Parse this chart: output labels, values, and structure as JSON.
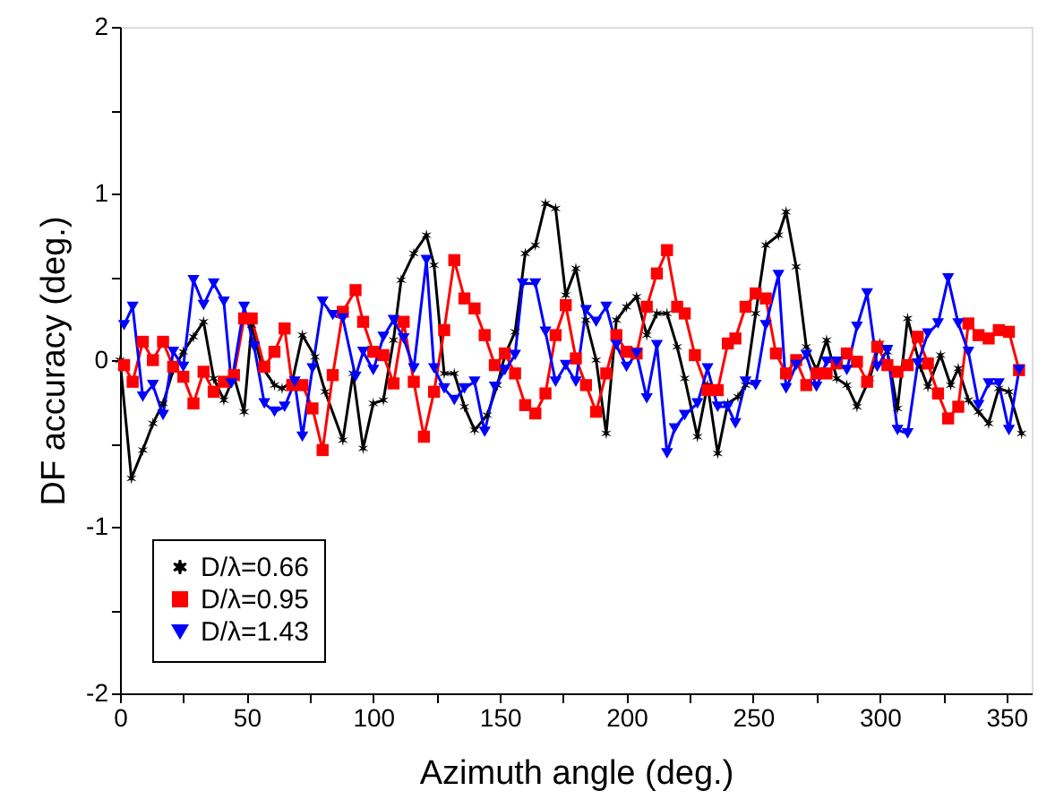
{
  "chart_data": {
    "type": "line",
    "xlabel": "Azimuth angle (deg.)",
    "ylabel": "DF accuracy (deg.)",
    "xlim": [
      0,
      360
    ],
    "xticks": [
      0,
      {
        "value": 25,
        "label": null
      },
      50,
      {
        "value": 75,
        "label": null
      },
      100,
      {
        "value": 125,
        "label": null
      },
      150,
      {
        "value": 175,
        "label": null
      },
      200,
      {
        "value": 225,
        "label": null
      },
      250,
      {
        "value": 275,
        "label": null
      },
      300,
      {
        "value": 325,
        "label": null
      },
      350
    ],
    "ylim": [
      -2,
      2
    ],
    "yticks": [
      -2,
      {
        "value": -1.5,
        "label": null
      },
      -1,
      {
        "value": -0.5,
        "label": null
      },
      0,
      {
        "value": 0.5,
        "label": null
      },
      1,
      {
        "value": 1.5,
        "label": null
      },
      2
    ],
    "grid": false,
    "legend": "bottom left",
    "series": [
      {
        "name": "D/λ=0.66",
        "color": "#000000",
        "marker": "cross",
        "x": [
          0,
          4.5,
          9,
          13,
          17,
          21,
          25,
          29,
          33,
          37,
          41,
          45,
          49,
          52,
          56,
          61,
          64,
          68,
          72,
          77,
          81,
          88,
          92,
          96,
          100,
          104,
          108,
          111,
          116,
          121,
          124,
          128,
          132,
          136,
          140,
          145,
          149,
          152,
          156,
          160,
          164,
          168,
          172,
          176,
          180,
          184,
          188,
          192,
          196,
          200,
          204,
          208,
          212,
          216,
          220,
          223,
          228,
          232,
          236,
          240,
          244,
          247,
          251,
          255,
          260,
          263,
          267,
          271,
          275,
          279,
          283,
          287,
          291,
          296,
          300,
          303,
          307,
          311,
          316,
          319,
          324,
          328,
          331,
          335,
          339,
          343,
          347,
          351,
          356
        ],
        "values": [
          0,
          -0.71,
          -0.54,
          -0.38,
          -0.26,
          -0.06,
          0.05,
          0.14,
          0.23,
          -0.11,
          -0.24,
          -0.1,
          -0.31,
          0.21,
          -0.04,
          -0.15,
          -0.17,
          -0.13,
          0.15,
          0.02,
          -0.19,
          -0.48,
          -0.08,
          -0.53,
          -0.26,
          -0.24,
          0.12,
          0.48,
          0.64,
          0.75,
          0.57,
          -0.08,
          -0.08,
          -0.28,
          -0.42,
          -0.33,
          -0.15,
          0.03,
          0.17,
          0.64,
          0.69,
          0.94,
          0.91,
          0.39,
          0.55,
          0.24,
          0,
          -0.44,
          0.24,
          0.32,
          0.38,
          0.15,
          0.28,
          0.28,
          0.08,
          -0.11,
          -0.46,
          -0.15,
          -0.56,
          -0.26,
          -0.22,
          -0.15,
          0.28,
          0.69,
          0.75,
          0.89,
          0.56,
          0.08,
          -0.06,
          0.12,
          -0.11,
          -0.15,
          -0.28,
          -0.11,
          0.1,
          0.05,
          -0.29,
          0.25,
          -0.04,
          -0.16,
          0.03,
          -0.15,
          -0.05,
          -0.24,
          -0.31,
          -0.38,
          -0.17,
          -0.19,
          -0.44
        ]
      },
      {
        "name": "D/λ=0.95",
        "color": "#ff0000",
        "marker": "square",
        "x": [
          1.6,
          5,
          9,
          13,
          17,
          21,
          25,
          29,
          33,
          37,
          41,
          45,
          49,
          52,
          57,
          61,
          65,
          68,
          72,
          76,
          80,
          84,
          88,
          93,
          96,
          100,
          104,
          108,
          112,
          116,
          120,
          124,
          128,
          132,
          136,
          140,
          144,
          148,
          152,
          156,
          160,
          164,
          168,
          172,
          176,
          180,
          184,
          188,
          192,
          196,
          200,
          204,
          208,
          212,
          216,
          220,
          223,
          227,
          232,
          236,
          240,
          243,
          247,
          251,
          255,
          259,
          263,
          267,
          271,
          275,
          279,
          283,
          287,
          291,
          295,
          299,
          303,
          307,
          311,
          315,
          319,
          323,
          327,
          331,
          335,
          339,
          343,
          347,
          351,
          355
        ],
        "values": [
          -0.03,
          -0.13,
          0.11,
          0,
          0.11,
          -0.04,
          -0.1,
          -0.26,
          -0.07,
          -0.19,
          -0.13,
          -0.09,
          0.25,
          0.25,
          -0.04,
          0.05,
          0.19,
          -0.15,
          -0.15,
          -0.29,
          -0.54,
          -0.09,
          0.29,
          0.42,
          0.23,
          0.05,
          0.03,
          -0.14,
          0.23,
          -0.13,
          -0.46,
          -0.19,
          0.18,
          0.6,
          0.37,
          0.31,
          0.15,
          -0.03,
          0.04,
          -0.08,
          -0.27,
          -0.32,
          -0.2,
          0.15,
          0.33,
          0.01,
          -0.15,
          -0.31,
          -0.08,
          0.15,
          0.05,
          0.04,
          0.32,
          0.52,
          0.66,
          0.32,
          0.28,
          0.03,
          -0.18,
          -0.18,
          0.1,
          0.13,
          0.32,
          0.4,
          0.37,
          0.04,
          -0.08,
          0,
          -0.15,
          -0.08,
          -0.08,
          -0.02,
          0.04,
          -0.01,
          -0.13,
          0.08,
          -0.03,
          -0.07,
          -0.03,
          0.14,
          -0.02,
          -0.2,
          -0.35,
          -0.28,
          0.22,
          0.15,
          0.13,
          0.18,
          0.17,
          -0.06
        ]
      },
      {
        "name": "D/λ=1.43",
        "color": "#0000ff",
        "marker": "triangle",
        "x": [
          1.6,
          5,
          9,
          13,
          17,
          21,
          25,
          29,
          33,
          37,
          41,
          44,
          49,
          53,
          57,
          61,
          65,
          69,
          72,
          76,
          80,
          84,
          88,
          93,
          96,
          100,
          104,
          108,
          112,
          116,
          121,
          124,
          128,
          132,
          136,
          140,
          144,
          148,
          152,
          156,
          159,
          164,
          168,
          172,
          176,
          180,
          184,
          188,
          192,
          196,
          200,
          204,
          208,
          212,
          216,
          219,
          223,
          228,
          232,
          236,
          240,
          243,
          247,
          251,
          255,
          260,
          263,
          267,
          271,
          275,
          279,
          283,
          287,
          291,
          295,
          299,
          303,
          307,
          311,
          315,
          319,
          323,
          327,
          331,
          335,
          339,
          343,
          347,
          351,
          355
        ],
        "values": [
          0.21,
          0.32,
          -0.22,
          -0.15,
          -0.33,
          0.05,
          -0.04,
          0.48,
          0.33,
          0.46,
          0.35,
          -0.14,
          0.32,
          0.08,
          -0.26,
          -0.31,
          -0.28,
          -0.13,
          -0.46,
          -0.05,
          0.35,
          0.27,
          0.25,
          -0.1,
          0.05,
          -0.06,
          0.14,
          0.24,
          0.13,
          -0.05,
          0.6,
          -0.05,
          -0.17,
          -0.24,
          -0.17,
          -0.13,
          -0.43,
          -0.16,
          -0.06,
          0.03,
          0.46,
          0.46,
          0.17,
          -0.13,
          -0.03,
          -0.13,
          0.3,
          0.23,
          0.32,
          0.09,
          -0.04,
          0.04,
          -0.23,
          0.09,
          -0.56,
          -0.41,
          -0.33,
          -0.26,
          -0.05,
          -0.28,
          -0.28,
          -0.38,
          -0.13,
          -0.15,
          0.21,
          0.51,
          -0.17,
          -0.03,
          0.03,
          -0.16,
          -0.01,
          -0.01,
          -0.06,
          0.2,
          0.4,
          -0.04,
          0.06,
          -0.42,
          -0.44,
          -0.02,
          0.16,
          0.22,
          0.49,
          0.22,
          0.05,
          -0.27,
          -0.14,
          -0.14,
          -0.42,
          -0.06
        ]
      }
    ]
  }
}
